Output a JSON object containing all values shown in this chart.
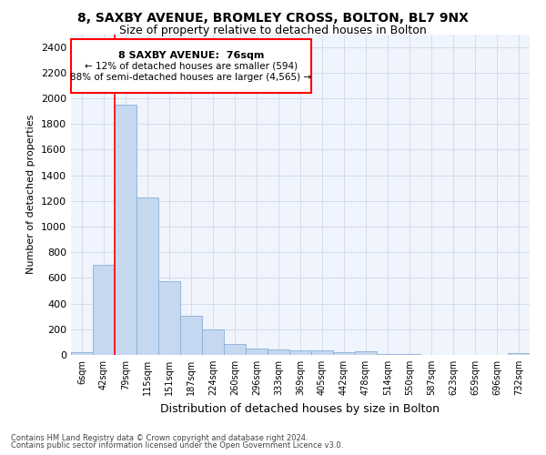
{
  "title1": "8, SAXBY AVENUE, BROMLEY CROSS, BOLTON, BL7 9NX",
  "title2": "Size of property relative to detached houses in Bolton",
  "xlabel": "Distribution of detached houses by size in Bolton",
  "ylabel": "Number of detached properties",
  "categories": [
    "6sqm",
    "42sqm",
    "79sqm",
    "115sqm",
    "151sqm",
    "187sqm",
    "224sqm",
    "260sqm",
    "296sqm",
    "333sqm",
    "369sqm",
    "405sqm",
    "442sqm",
    "478sqm",
    "514sqm",
    "550sqm",
    "587sqm",
    "623sqm",
    "659sqm",
    "696sqm",
    "732sqm"
  ],
  "values": [
    20,
    700,
    1950,
    1225,
    575,
    305,
    200,
    85,
    50,
    40,
    35,
    35,
    20,
    30,
    5,
    5,
    3,
    2,
    2,
    2,
    15
  ],
  "bar_color": "#c5d8f0",
  "bar_edge_color": "#8ab0d8",
  "red_line_x": 2,
  "annotation_title": "8 SAXBY AVENUE:  76sqm",
  "annotation_line1": "← 12% of detached houses are smaller (594)",
  "annotation_line2": "88% of semi-detached houses are larger (4,565) →",
  "ylim": [
    0,
    2500
  ],
  "yticks": [
    0,
    200,
    400,
    600,
    800,
    1000,
    1200,
    1400,
    1600,
    1800,
    2000,
    2200,
    2400
  ],
  "footer1": "Contains HM Land Registry data © Crown copyright and database right 2024.",
  "footer2": "Contains public sector information licensed under the Open Government Licence v3.0.",
  "bg_color": "#ffffff",
  "axes_bg_color": "#f0f4fc",
  "grid_color": "#d0d8e8"
}
